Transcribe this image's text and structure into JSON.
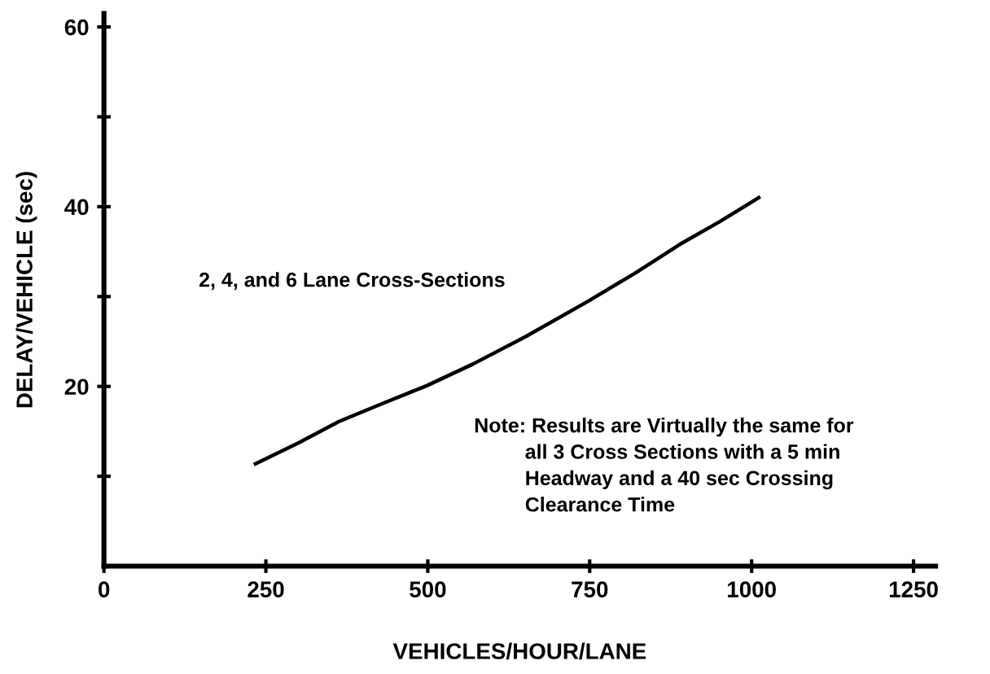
{
  "chart_data": {
    "type": "line",
    "xlabel": "VEHICLES/HOUR/LANE",
    "ylabel": "DELAY/VEHICLE (sec)",
    "x": [
      234,
      300,
      363,
      430,
      499,
      570,
      650,
      748,
      820,
      889,
      950,
      1011
    ],
    "series": [
      {
        "color": "#000000",
        "values": [
          11.4,
          13.7,
          16.1,
          18.1,
          20.1,
          22.5,
          25.5,
          29.5,
          32.6,
          35.8,
          38.3,
          41.0
        ]
      }
    ],
    "xlim": [
      0,
      1284
    ],
    "ylim": [
      0,
      61.5
    ],
    "xticks": [
      0,
      250,
      500,
      750,
      1000,
      1250
    ],
    "yticks": [
      {
        "value": 10,
        "label": null
      },
      20,
      {
        "value": 30,
        "label": null
      },
      40,
      {
        "value": 50,
        "label": null
      },
      60
    ],
    "annotations": [
      "2, 4, and 6 Lane Cross-Sections",
      "Note: Results are Virtually the same for\n         all 3 Cross Sections with a 5 min\n         Headway and a 40 sec Crossing\n         Clearance Time"
    ],
    "grid": false,
    "marker": "none",
    "line_style": "solid"
  }
}
